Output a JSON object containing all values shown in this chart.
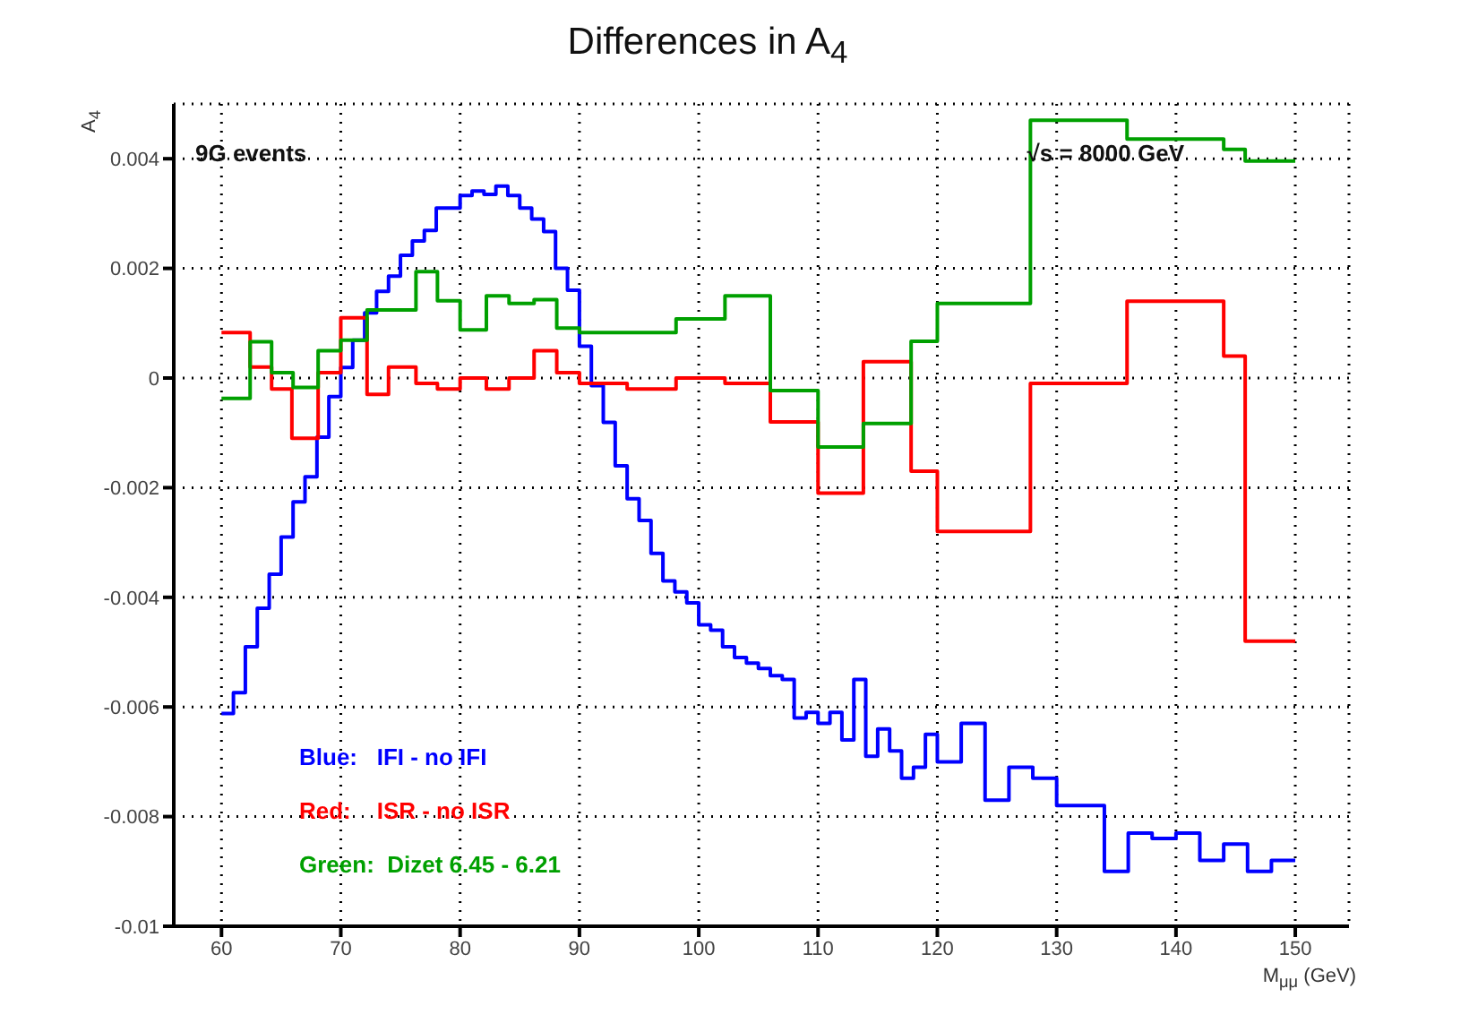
{
  "chart_data": {
    "type": "step",
    "title": "Differences in A$_{4}$",
    "xlabel": "M$_{μμ}$ (GeV)",
    "ylabel": "A$_{4}$",
    "annotations": [
      "9G events",
      "√s = 8000 GeV"
    ],
    "xlim": [
      56,
      154.5
    ],
    "xticks": [
      60,
      70,
      80,
      90,
      100,
      110,
      120,
      130,
      140,
      150
    ],
    "ylim": [
      -0.01,
      0.005
    ],
    "yticks": [
      -0.01,
      -0.008,
      -0.006,
      -0.004,
      -0.002,
      0,
      0.002,
      0.004
    ],
    "grid": true,
    "legend": "bottom left",
    "line_style": "solid",
    "marker": "none",
    "series": [
      {
        "name": "Blue:   IFI - no IFI",
        "color": "#0000ff",
        "x": [
          60,
          61,
          62,
          63,
          64,
          65,
          66,
          67,
          68,
          69,
          70,
          71,
          72,
          73,
          74,
          75,
          76,
          77,
          78,
          79,
          80,
          81,
          82,
          83,
          84,
          85,
          86,
          87,
          88,
          89,
          90,
          91,
          92,
          93,
          94,
          95,
          96,
          97,
          98,
          99,
          100,
          101,
          102,
          103,
          104,
          105,
          106,
          107,
          108,
          109,
          110,
          111,
          112,
          113,
          114,
          115,
          116,
          117,
          118,
          119,
          120,
          122,
          124,
          126,
          128,
          130,
          134,
          136,
          138,
          140,
          142,
          144,
          146,
          148,
          150
        ],
        "values": [
          -0.00612,
          -0.00574,
          -0.0049,
          -0.0042,
          -0.00358,
          -0.0029,
          -0.00226,
          -0.0018,
          -0.00108,
          -0.00034,
          0.00019,
          0.00069,
          0.00119,
          0.00158,
          0.00186,
          0.00224,
          0.0025,
          0.00269,
          0.0031,
          0.0031,
          0.00333,
          0.00341,
          0.00335,
          0.0035,
          0.00333,
          0.0031,
          0.0029,
          0.00267,
          0.002,
          0.0016,
          0.00058,
          -0.00014,
          -0.00081,
          -0.0016,
          -0.0022,
          -0.0026,
          -0.0032,
          -0.0037,
          -0.0039,
          -0.0041,
          -0.0045,
          -0.0046,
          -0.0049,
          -0.0051,
          -0.0052,
          -0.0053,
          -0.00543,
          -0.0055,
          -0.0062,
          -0.0061,
          -0.0063,
          -0.0061,
          -0.0066,
          -0.0055,
          -0.0069,
          -0.0064,
          -0.0068,
          -0.0073,
          -0.0071,
          -0.0065,
          -0.007,
          -0.0063,
          -0.0077,
          -0.0071,
          -0.0073,
          -0.0078,
          -0.009,
          -0.0083,
          -0.0084,
          -0.0083,
          -0.0088,
          -0.0085,
          -0.009,
          -0.0088,
          -0.0088
        ]
      },
      {
        "name": "Red:    ISR - no ISR",
        "color": "#ff0000",
        "x": [
          60,
          62.4,
          64.2,
          65.9,
          68.1,
          70,
          72.2,
          74,
          76.3,
          78.1,
          80,
          82.2,
          84.1,
          86.2,
          88.1,
          90,
          94,
          98.1,
          102.2,
          106,
          110,
          113.8,
          117.8,
          120,
          127.8,
          135.9,
          144,
          145.8,
          150
        ],
        "values": [
          0.00083,
          0.0002,
          -0.0002,
          -0.0011,
          0.0001,
          0.0011,
          -0.0003,
          0.0002,
          -0.0001,
          -0.0002,
          0,
          -0.0002,
          0,
          0.0005,
          0.0001,
          -0.0001,
          -0.0002,
          0,
          -0.0001,
          -0.0008,
          -0.0021,
          0.0003,
          -0.0017,
          -0.0028,
          -0.0001,
          0.0014,
          0.0004,
          -0.0048,
          -0.0048
        ]
      },
      {
        "name": "Green:  Dizet 6.45 - 6.21",
        "color": "#00a000",
        "x": [
          60,
          62.4,
          64.2,
          66,
          68.1,
          70,
          72.2,
          76.3,
          78.1,
          80,
          82.2,
          84.1,
          86.2,
          88.1,
          90,
          98.1,
          102.2,
          106,
          110,
          113.8,
          117.8,
          120,
          127.8,
          135.9,
          144,
          145.8,
          150
        ],
        "values": [
          -0.00037,
          0.00066,
          0.0001,
          -0.00017,
          0.0005,
          0.00069,
          0.00124,
          0.00194,
          0.00141,
          0.00088,
          0.0015,
          0.00136,
          0.00143,
          0.00091,
          0.00083,
          0.00108,
          0.0015,
          -0.00023,
          -0.00126,
          -0.00083,
          0.00067,
          0.00136,
          0.0047,
          0.00436,
          0.00417,
          0.00396,
          0.00396
        ]
      }
    ]
  }
}
